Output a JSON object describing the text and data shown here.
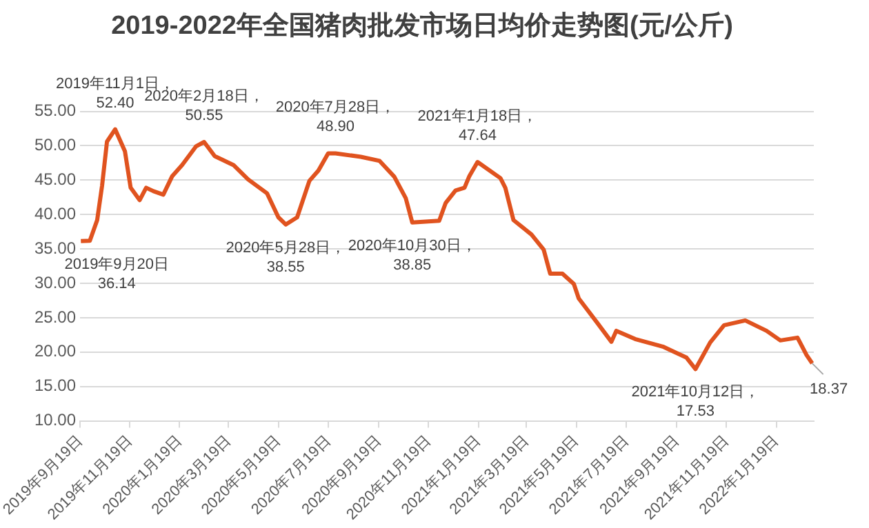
{
  "chart_data": {
    "type": "line",
    "title": "2019-2022年全国猪肉批发市场日均价走势图(元/公斤)",
    "x": [
      "2019-09-20",
      "2019-10-01",
      "2019-10-10",
      "2019-10-16",
      "2019-10-22",
      "2019-11-01",
      "2019-11-13",
      "2019-11-20",
      "2019-12-01",
      "2019-12-09",
      "2019-12-18",
      "2019-12-30",
      "2020-01-10",
      "2020-01-22",
      "2020-02-08",
      "2020-02-18",
      "2020-03-02",
      "2020-03-25",
      "2020-04-12",
      "2020-05-05",
      "2020-05-19",
      "2020-05-28",
      "2020-06-11",
      "2020-06-26",
      "2020-07-07",
      "2020-07-19",
      "2020-07-28",
      "2020-08-28",
      "2020-09-20",
      "2020-10-08",
      "2020-10-22",
      "2020-10-30",
      "2020-12-02",
      "2020-12-10",
      "2020-12-22",
      "2021-01-02",
      "2021-01-08",
      "2021-01-18",
      "2021-02-15",
      "2021-02-21",
      "2021-03-03",
      "2021-03-25",
      "2021-04-09",
      "2021-04-17",
      "2021-05-02",
      "2021-05-16",
      "2021-05-22",
      "2021-06-14",
      "2021-07-01",
      "2021-07-07",
      "2021-07-30",
      "2021-09-02",
      "2021-10-01",
      "2021-10-12",
      "2021-10-30",
      "2021-11-16",
      "2021-12-12",
      "2022-01-07",
      "2022-01-24",
      "2022-02-14",
      "2022-02-25",
      "2022-03-04"
    ],
    "series": [
      {
        "color": "#e0531f",
        "values": [
          36.14,
          36.2,
          39.2,
          44.2,
          50.6,
          52.4,
          49.2,
          43.9,
          42.1,
          43.9,
          43.4,
          42.9,
          45.6,
          47.2,
          49.9,
          50.55,
          48.5,
          47.2,
          45.1,
          43.1,
          39.6,
          38.55,
          39.6,
          44.9,
          46.4,
          48.9,
          48.9,
          48.4,
          47.8,
          45.5,
          42.4,
          38.85,
          39.1,
          41.7,
          43.5,
          43.9,
          45.6,
          47.64,
          45.3,
          43.9,
          39.2,
          37.1,
          34.9,
          31.4,
          31.4,
          29.9,
          27.8,
          24.2,
          21.5,
          23.1,
          21.9,
          20.8,
          19.2,
          17.53,
          21.4,
          23.9,
          24.6,
          23.1,
          21.7,
          22.1,
          19.6,
          18.37
        ]
      }
    ],
    "xlim": [
      "2019-09-19",
      "2022-03-06"
    ],
    "xticks": [
      {
        "value": "2019-09-19",
        "label": "2019年9月19日"
      },
      {
        "value": "2019-11-19",
        "label": "2019年11月19日"
      },
      {
        "value": "2020-01-19",
        "label": "2020年1月19日"
      },
      {
        "value": "2020-03-19",
        "label": "2020年3月19日"
      },
      {
        "value": "2020-05-19",
        "label": "2020年5月19日"
      },
      {
        "value": "2020-07-19",
        "label": "2020年7月19日"
      },
      {
        "value": "2020-09-19",
        "label": "2020年9月19日"
      },
      {
        "value": "2020-11-19",
        "label": "2020年11月19日"
      },
      {
        "value": "2021-01-19",
        "label": "2021年1月19日"
      },
      {
        "value": "2021-03-19",
        "label": "2021年3月19日"
      },
      {
        "value": "2021-05-19",
        "label": "2021年5月19日"
      },
      {
        "value": "2021-07-19",
        "label": "2021年7月19日"
      },
      {
        "value": "2021-09-19",
        "label": "2021年9月19日"
      },
      {
        "value": "2021-11-19",
        "label": "2021年11月19日"
      },
      {
        "value": "2022-01-19",
        "label": "2022年1月19日"
      }
    ],
    "ylim": [
      10,
      55
    ],
    "yticks": [
      {
        "value": 10,
        "label": "10.00"
      },
      {
        "value": 15,
        "label": "15.00"
      },
      {
        "value": 20,
        "label": "20.00"
      },
      {
        "value": 25,
        "label": "25.00"
      },
      {
        "value": 30,
        "label": "30.00"
      },
      {
        "value": 35,
        "label": "35.00"
      },
      {
        "value": 40,
        "label": "40.00"
      },
      {
        "value": 45,
        "label": "45.00"
      },
      {
        "value": 50,
        "label": "50.00"
      },
      {
        "value": 55,
        "label": "55.00"
      }
    ],
    "grid": "y",
    "legend": false,
    "marker": "none",
    "line_style": "solid",
    "annotations": [
      {
        "text": "2019年9月20日\n36.14",
        "x": "2019-09-20",
        "y": 36.14
      },
      {
        "text": "2019年11月1日，\n52.40",
        "x": "2019-11-01",
        "y": 52.4
      },
      {
        "text": "2020年2月18日，\n50.55",
        "x": "2020-02-18",
        "y": 50.55
      },
      {
        "text": "2020年5月28日，\n38.55",
        "x": "2020-05-28",
        "y": 38.55
      },
      {
        "text": "2020年7月28日，\n48.90",
        "x": "2020-07-28",
        "y": 48.9
      },
      {
        "text": "2020年10月30日，\n38.85",
        "x": "2020-10-30",
        "y": 38.85
      },
      {
        "text": "2021年1月18日，\n47.64",
        "x": "2021-01-18",
        "y": 47.64
      },
      {
        "text": "2021年10月12日，\n17.53",
        "x": "2021-10-12",
        "y": 17.53
      },
      {
        "text": "18.37",
        "x": "2022-03-04",
        "y": 18.37
      }
    ]
  }
}
